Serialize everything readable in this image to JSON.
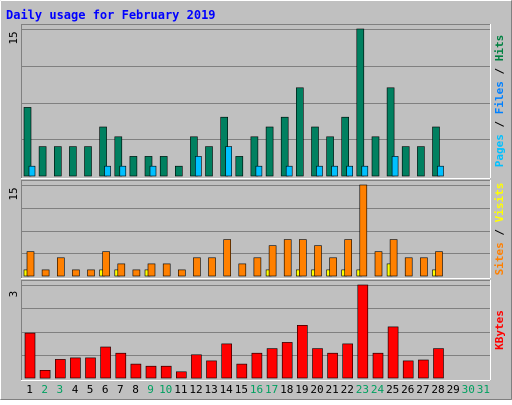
{
  "chart_data": {
    "type": "bar",
    "title": "Daily usage for February 2019",
    "days": [
      "1",
      "2",
      "3",
      "4",
      "5",
      "6",
      "7",
      "8",
      "9",
      "10",
      "11",
      "12",
      "13",
      "14",
      "15",
      "16",
      "17",
      "18",
      "19",
      "20",
      "21",
      "22",
      "23",
      "24",
      "25",
      "26",
      "27",
      "28",
      "29",
      "30",
      "31"
    ],
    "weekend_days": [
      "2",
      "3",
      "9",
      "10",
      "16",
      "17",
      "23",
      "24",
      "30",
      "31"
    ],
    "panels": [
      {
        "max_label": "15",
        "ymax": 15,
        "right_label_parts": [
          {
            "text": "Pages",
            "color": "#00c0ff"
          },
          {
            "text": " / ",
            "color": "#000000"
          },
          {
            "text": "Files",
            "color": "#0080ff"
          },
          {
            "text": " / ",
            "color": "#000000"
          },
          {
            "text": "Hits",
            "color": "#008040"
          }
        ],
        "series": [
          {
            "name": "Hits",
            "color": "#008060",
            "values": [
              7,
              3,
              3,
              3,
              3,
              5,
              4,
              2,
              2,
              2,
              1,
              4,
              3,
              6,
              2,
              4,
              5,
              6,
              9,
              5,
              4,
              6,
              15,
              4,
              9,
              3,
              3,
              5,
              0,
              0,
              0
            ]
          },
          {
            "name": "Files",
            "color": "#00c0ff",
            "values": [
              1,
              0,
              0,
              0,
              0,
              1,
              1,
              0,
              1,
              0,
              0,
              2,
              0,
              3,
              0,
              1,
              0,
              1,
              0,
              1,
              1,
              1,
              1,
              0,
              2,
              0,
              0,
              1,
              0,
              0,
              0
            ]
          }
        ]
      },
      {
        "max_label": "15",
        "ymax": 15,
        "right_label_parts": [
          {
            "text": "Sites",
            "color": "#ff8000"
          },
          {
            "text": " / ",
            "color": "#000000"
          },
          {
            "text": "Visits",
            "color": "#ffff00"
          }
        ],
        "series": [
          {
            "name": "Visits",
            "color": "#ffff00",
            "values": [
              1,
              0,
              0,
              0,
              0,
              1,
              1,
              0,
              1,
              0,
              0,
              0,
              0,
              0,
              0,
              0,
              1,
              0,
              1,
              1,
              1,
              1,
              1,
              0,
              2,
              0,
              0,
              1,
              0,
              0,
              0
            ]
          },
          {
            "name": "Sites",
            "color": "#ff8000",
            "values": [
              4,
              1,
              3,
              1,
              1,
              4,
              2,
              1,
              2,
              2,
              1,
              3,
              3,
              6,
              2,
              3,
              5,
              6,
              6,
              5,
              3,
              6,
              15,
              4,
              6,
              3,
              3,
              4,
              0,
              0,
              0
            ]
          }
        ]
      },
      {
        "max_label": "3",
        "ymax": 3,
        "right_label_parts": [
          {
            "text": "KBytes",
            "color": "#ff0000"
          }
        ],
        "series": [
          {
            "name": "KBytes",
            "color": "#ff0000",
            "values": [
              1.45,
              0.25,
              0.6,
              0.65,
              0.65,
              1.0,
              0.8,
              0.45,
              0.38,
              0.38,
              0.2,
              0.75,
              0.55,
              1.1,
              0.45,
              0.8,
              0.95,
              1.15,
              1.7,
              0.95,
              0.8,
              1.1,
              3.0,
              0.8,
              1.65,
              0.55,
              0.58,
              0.95,
              0,
              0,
              0
            ]
          }
        ]
      }
    ]
  },
  "colors": {
    "canvas": "#c0c0c0",
    "plot_bg": "#c0c0c0",
    "title": "#0000ff",
    "gridline": "#808080",
    "axis_label": "#000000",
    "weekday_label": "#000000",
    "weekend_label": "#00a060"
  }
}
